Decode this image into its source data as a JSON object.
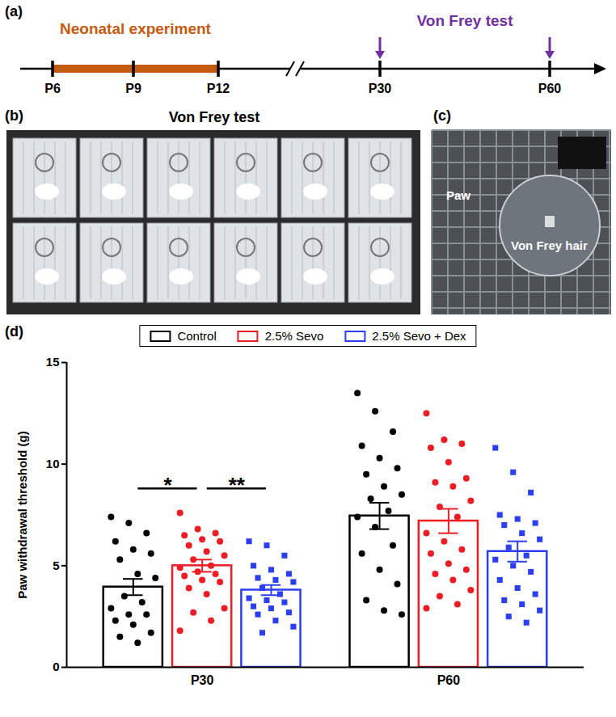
{
  "panel_a": {
    "label": "(a)",
    "phase_label": "Neonatal experiment",
    "phase_color": "#c55a11",
    "test_label": "Von Frey test",
    "test_color": "#7030a0",
    "timepoints": [
      "P6",
      "P9",
      "P12",
      "P30",
      "P60"
    ],
    "phase": [
      "P6",
      "P12"
    ],
    "test_points": [
      "P30",
      "P60"
    ]
  },
  "panel_b": {
    "label": "(b)",
    "title": "Von Frey test"
  },
  "panel_c": {
    "label": "(c)",
    "annotations": [
      "Paw",
      "Von Frey hair"
    ]
  },
  "chart_data": {
    "label": "(d)",
    "type": "bar",
    "y_label": "Paw withdrawal threshold (g)",
    "categories": [
      "P30",
      "P60"
    ],
    "ylim": [
      0,
      15
    ],
    "yticks": [
      0,
      5,
      10,
      15
    ],
    "legend": "top",
    "series": [
      {
        "name": "Control",
        "color": "#000000",
        "marker": "circle",
        "values": [
          3.95,
          7.45
        ],
        "errors": [
          0.4,
          0.65
        ],
        "points": [
          [
            7.4,
            7.1,
            6.6,
            6.2,
            5.8,
            5.6,
            5.3,
            4.6,
            4.4,
            3.5,
            3.2,
            2.9,
            2.6,
            2.6,
            2.3,
            2.1,
            1.7,
            1.5,
            1.2
          ],
          [
            13.5,
            12.6,
            11.6,
            10.9,
            10.3,
            9.8,
            9.5,
            8.9,
            8.5,
            8.3,
            7.7,
            7.4,
            6.9,
            6.0,
            5.6,
            4.8,
            4.1,
            3.3,
            2.8,
            2.6
          ]
        ]
      },
      {
        "name": "2.5% Sevo",
        "color": "#ee1c25",
        "marker": "circle",
        "values": [
          5.0,
          7.2
        ],
        "errors": [
          0.3,
          0.6
        ],
        "points": [
          [
            7.6,
            6.8,
            6.6,
            6.5,
            6.3,
            6.2,
            6.0,
            5.7,
            5.5,
            5.3,
            5.0,
            4.9,
            4.7,
            4.6,
            4.5,
            4.3,
            4.2,
            3.9,
            3.6,
            2.9,
            2.7,
            2.3,
            1.8
          ],
          [
            12.5,
            11.2,
            11.0,
            10.8,
            10.1,
            9.3,
            9.1,
            8.9,
            8.2,
            7.9,
            7.4,
            6.6,
            6.2,
            5.8,
            5.6,
            5.1,
            4.8,
            4.6,
            4.3,
            3.8,
            3.5,
            3.1,
            2.9
          ]
        ]
      },
      {
        "name": "2.5% Sevo + Dex",
        "color": "#2b3ff0",
        "marker": "square",
        "values": [
          3.8,
          5.7
        ],
        "errors": [
          0.25,
          0.5
        ],
        "points": [
          [
            6.2,
            6.0,
            5.5,
            5.0,
            4.8,
            4.6,
            4.4,
            4.3,
            4.2,
            3.9,
            3.6,
            3.4,
            3.3,
            3.2,
            3.0,
            2.9,
            2.7,
            2.6,
            2.3,
            2.0,
            1.7
          ],
          [
            10.8,
            9.6,
            8.6,
            7.5,
            7.3,
            7.1,
            7.0,
            6.6,
            6.3,
            5.9,
            5.5,
            5.3,
            5.0,
            4.7,
            4.3,
            3.9,
            3.6,
            3.3,
            3.1,
            2.8,
            2.5,
            2.2
          ]
        ]
      }
    ],
    "significance": [
      {
        "category": "P30",
        "between": [
          "Control",
          "2.5% Sevo"
        ],
        "label": "*"
      },
      {
        "category": "P30",
        "between": [
          "2.5% Sevo",
          "2.5% Sevo + Dex"
        ],
        "label": "**"
      }
    ]
  }
}
